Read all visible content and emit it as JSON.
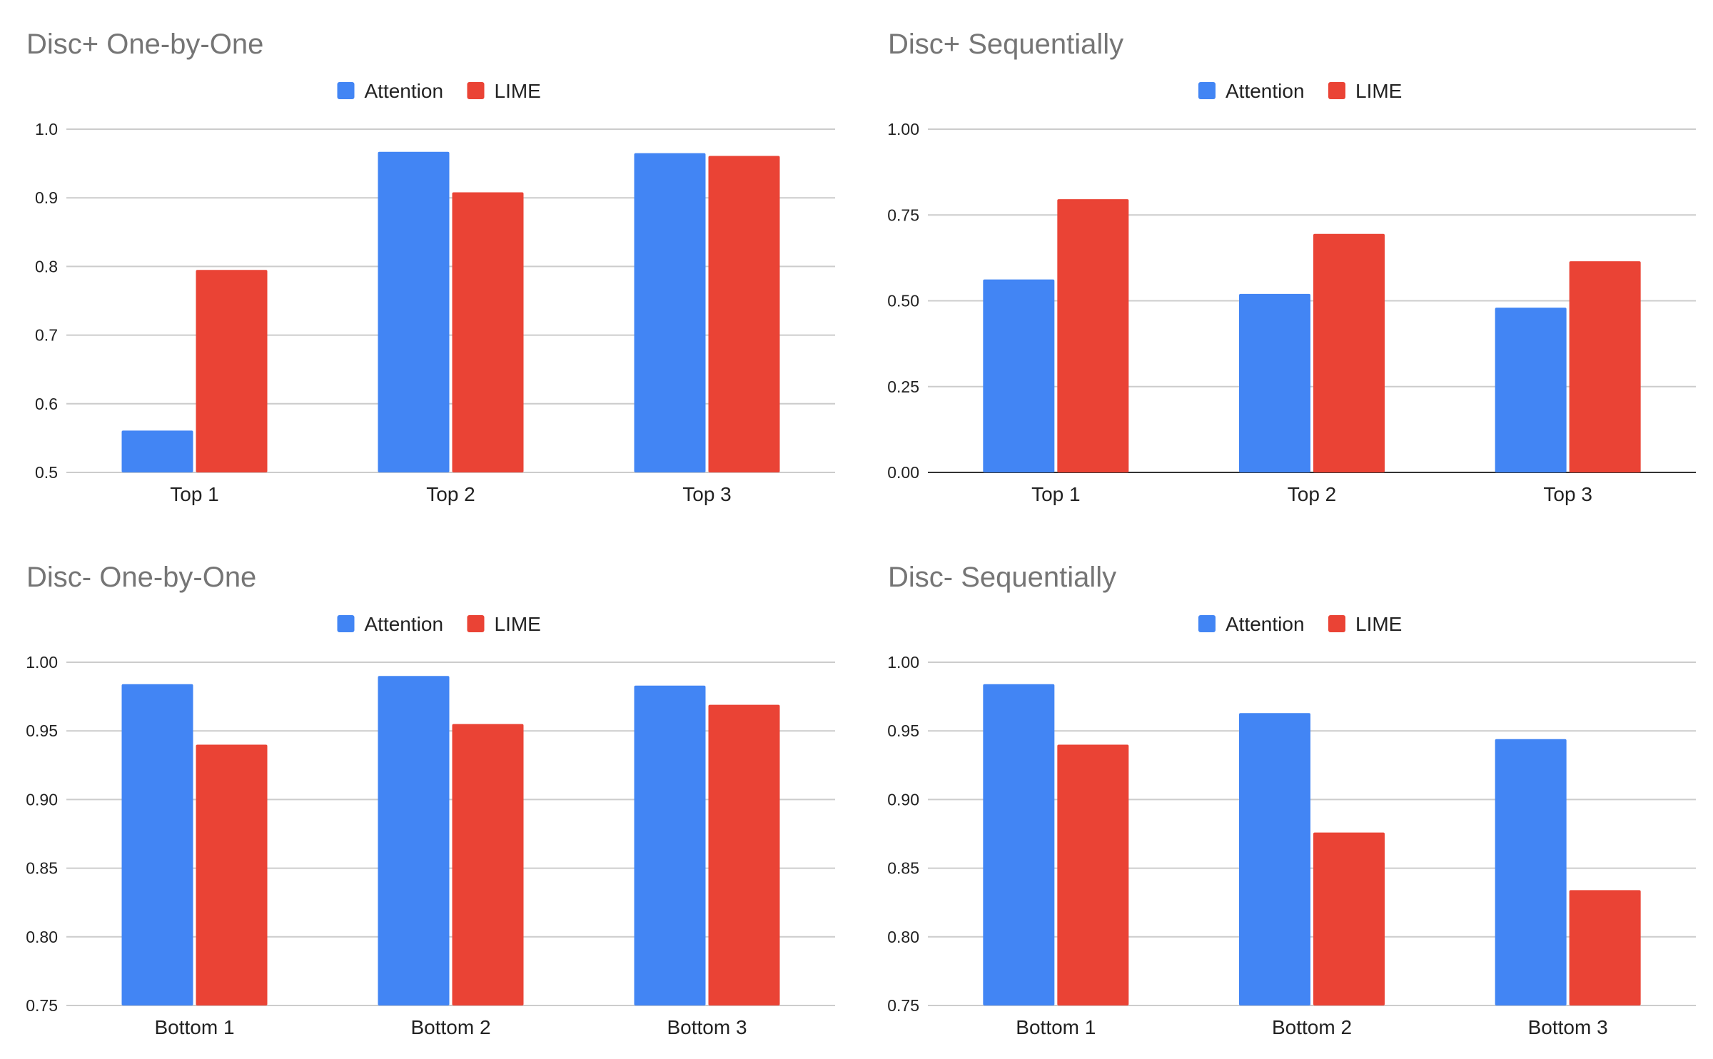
{
  "chart_data": [
    {
      "type": "bar",
      "title": "Disc+ One-by-One",
      "categories": [
        "Top 1",
        "Top 2",
        "Top 3"
      ],
      "series": [
        {
          "name": "Attention",
          "color": "#4285F4",
          "values": [
            0.561,
            0.967,
            0.965
          ]
        },
        {
          "name": "LIME",
          "color": "#EA4335",
          "values": [
            0.795,
            0.908,
            0.961
          ]
        }
      ],
      "ylim": [
        0.5,
        1.0
      ],
      "yticks": [
        "0.5",
        "0.6",
        "0.7",
        "0.8",
        "0.9",
        "1.0"
      ],
      "xlabel": "",
      "ylabel": "",
      "legend": "top"
    },
    {
      "type": "bar",
      "title": "Disc+ Sequentially",
      "categories": [
        "Top 1",
        "Top 2",
        "Top 3"
      ],
      "series": [
        {
          "name": "Attention",
          "color": "#4285F4",
          "values": [
            0.562,
            0.52,
            0.48
          ]
        },
        {
          "name": "LIME",
          "color": "#EA4335",
          "values": [
            0.796,
            0.695,
            0.615
          ]
        }
      ],
      "ylim": [
        0.0,
        1.0
      ],
      "yticks": [
        "0.00",
        "0.25",
        "0.50",
        "0.75",
        "1.00"
      ],
      "xlabel": "",
      "ylabel": "",
      "legend": "top"
    },
    {
      "type": "bar",
      "title": "Disc- One-by-One",
      "categories": [
        "Bottom 1",
        "Bottom 2",
        "Bottom 3"
      ],
      "series": [
        {
          "name": "Attention",
          "color": "#4285F4",
          "values": [
            0.984,
            0.99,
            0.983
          ]
        },
        {
          "name": "LIME",
          "color": "#EA4335",
          "values": [
            0.94,
            0.955,
            0.969
          ]
        }
      ],
      "ylim": [
        0.75,
        1.0
      ],
      "yticks": [
        "0.75",
        "0.80",
        "0.85",
        "0.90",
        "0.95",
        "1.00"
      ],
      "xlabel": "",
      "ylabel": "",
      "legend": "top"
    },
    {
      "type": "bar",
      "title": "Disc- Sequentially",
      "categories": [
        "Bottom 1",
        "Bottom 2",
        "Bottom 3"
      ],
      "series": [
        {
          "name": "Attention",
          "color": "#4285F4",
          "values": [
            0.984,
            0.963,
            0.944
          ]
        },
        {
          "name": "LIME",
          "color": "#EA4335",
          "values": [
            0.94,
            0.876,
            0.834
          ]
        }
      ],
      "ylim": [
        0.75,
        1.0
      ],
      "yticks": [
        "0.75",
        "0.80",
        "0.85",
        "0.90",
        "0.95",
        "1.00"
      ],
      "xlabel": "",
      "ylabel": "",
      "legend": "top"
    }
  ]
}
